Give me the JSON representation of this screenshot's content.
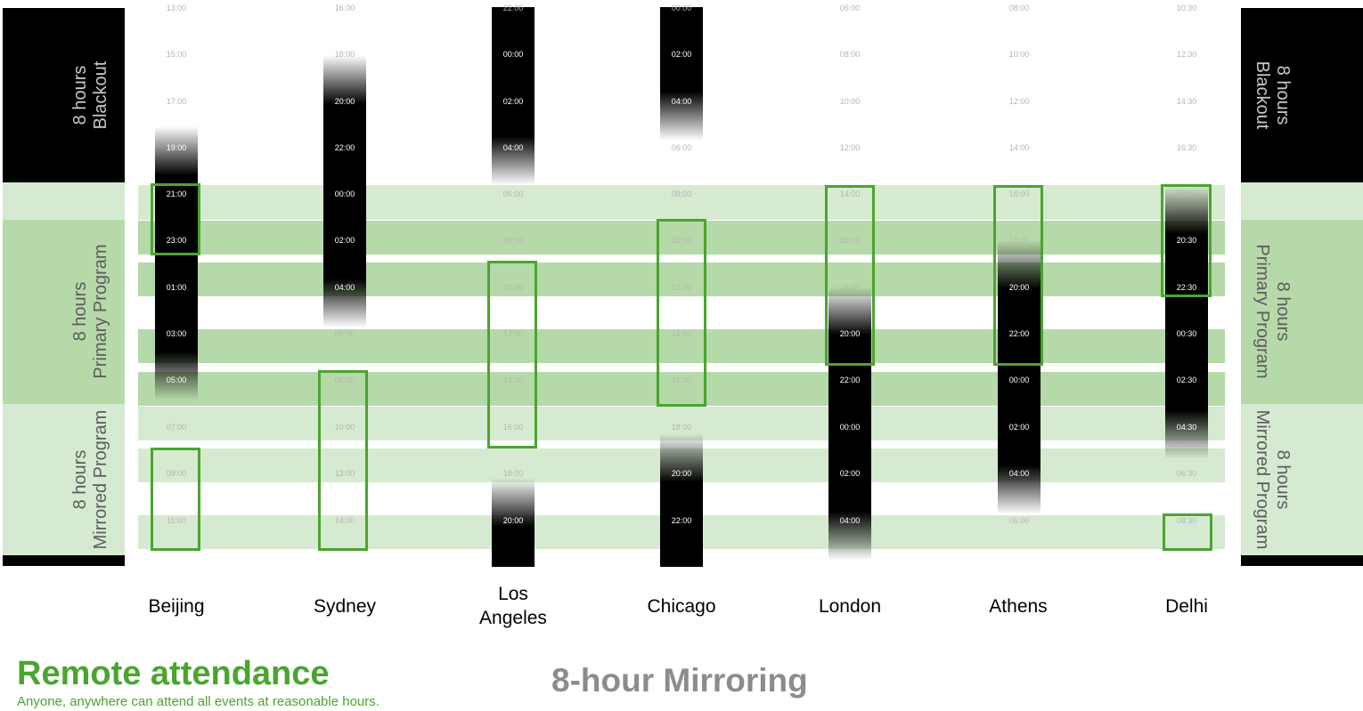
{
  "legend_left": {
    "blackout": [
      "8 hours",
      "Blackout"
    ],
    "primary": [
      "8 hours",
      "Primary Program"
    ],
    "mirrored": [
      "8 hours",
      "Mirrored Program"
    ]
  },
  "legend_right": {
    "blackout": [
      "8 hours",
      "Blackout"
    ],
    "primary": [
      "8 hours",
      "Primary Program"
    ],
    "mirrored": [
      "8 hours",
      "Mirrored Program"
    ]
  },
  "cities": [
    {
      "name": "Beijing",
      "times": [
        "13:00",
        "15:00",
        "17:00",
        "19:00",
        "21:00",
        "23:00",
        "01:00",
        "03:00",
        "05:00",
        "07:00",
        "09:00",
        "11:00"
      ]
    },
    {
      "name": "Sydney",
      "times": [
        "16:00",
        "18:00",
        "20:00",
        "22:00",
        "00:00",
        "02:00",
        "04:00",
        "06:00",
        "08:00",
        "10:00",
        "12:00",
        "14:00"
      ]
    },
    {
      "name": "Los Angeles",
      "times": [
        "22:00",
        "00:00",
        "02:00",
        "04:00",
        "06:00",
        "08:00",
        "10:00",
        "12:00",
        "14:00",
        "16:00",
        "18:00",
        "20:00"
      ]
    },
    {
      "name": "Chicago",
      "times": [
        "00:00",
        "02:00",
        "04:00",
        "06:00",
        "08:00",
        "10:00",
        "12:00",
        "14:00",
        "16:00",
        "18:00",
        "20:00",
        "22:00"
      ]
    },
    {
      "name": "London",
      "times": [
        "06:00",
        "08:00",
        "10:00",
        "12:00",
        "14:00",
        "16:00",
        "18:00",
        "20:00",
        "22:00",
        "00:00",
        "02:00",
        "04:00"
      ]
    },
    {
      "name": "Athens",
      "times": [
        "08:00",
        "10:00",
        "12:00",
        "14:00",
        "16:00",
        "18:00",
        "20:00",
        "22:00",
        "00:00",
        "02:00",
        "04:00",
        "06:00"
      ]
    },
    {
      "name": "Delhi",
      "times": [
        "10:30",
        "12:30",
        "14:30",
        "16:30",
        "18:30",
        "20:30",
        "22:30",
        "00:30",
        "02:30",
        "04:30",
        "06:30",
        "08:30"
      ]
    }
  ],
  "city_labels": {
    "beijing": "Beijing",
    "sydney": "Sydney",
    "la_line1": "Los",
    "la_line2": "Angeles",
    "chicago": "Chicago",
    "london": "London",
    "athens": "Athens",
    "delhi": "Delhi"
  },
  "footer": {
    "title": "Remote attendance",
    "subtitle": "Anyone, anywhere can attend all events at reasonable hours.",
    "scheme": "8-hour Mirroring"
  },
  "colors": {
    "accent_green": "#4aa52e",
    "band_light": "#d6ead1",
    "band_mid": "#b6d9a9",
    "blackout": "#000000"
  }
}
